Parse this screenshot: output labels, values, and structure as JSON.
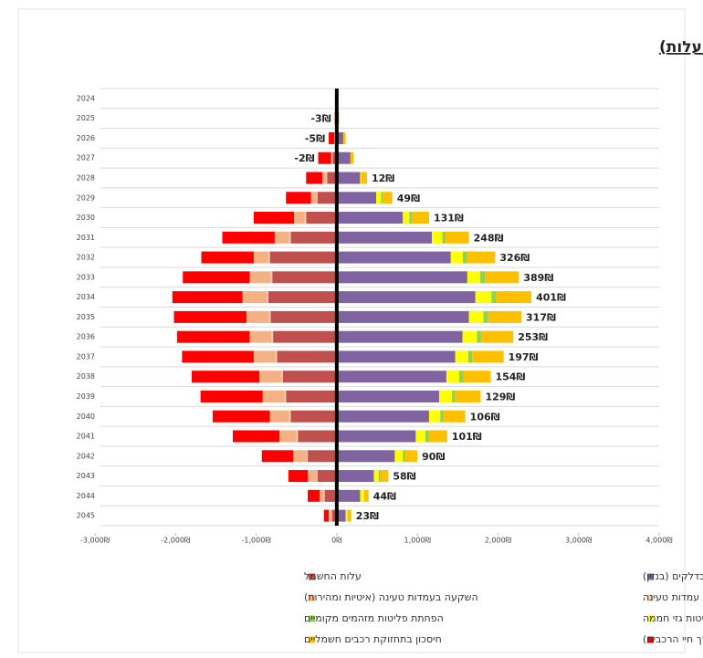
{
  "chart_data": {
    "type": "diverging-stacked-bar",
    "title": "תועלת נטו במלש\"ח (חיסכון בניכוי עלות)",
    "categories": [
      "2024",
      "2025",
      "2026",
      "2027",
      "2028",
      "2029",
      "2030",
      "2031",
      "2032",
      "2033",
      "2034",
      "2035",
      "2036",
      "2037",
      "2038",
      "2039",
      "2040",
      "2041",
      "2042",
      "2043",
      "2044",
      "2045"
    ],
    "series": [
      {
        "name": "חיסכון בדלקים (בנזין)",
        "color": "#8064a2",
        "values": [
          null,
          20,
          80,
          170,
          290,
          490,
          820,
          1180,
          1415,
          1620,
          1720,
          1640,
          1560,
          1470,
          1360,
          1270,
          1145,
          980,
          720,
          460,
          290,
          110
        ]
      },
      {
        "name": "עלות החשמל",
        "color": "#c0504d",
        "values": [
          null,
          -5,
          -20,
          -50,
          -120,
          -240,
          -380,
          -570,
          -830,
          -800,
          -850,
          -820,
          -790,
          -740,
          -670,
          -630,
          -570,
          -480,
          -360,
          -240,
          -150,
          -60
        ]
      },
      {
        "name": "עלות תחזוקת עמדות טעינה",
        "color": "#f8cbad",
        "values": [
          null,
          0,
          0,
          0,
          -10,
          -10,
          -20,
          -20,
          -20,
          -20,
          -20,
          -20,
          -20,
          -20,
          -20,
          -20,
          -20,
          -20,
          -10,
          -10,
          -10,
          -10
        ]
      },
      {
        "name": "השקעה בעמדות טעינה (איטיות ומהירות)",
        "color": "#f4b183",
        "values": [
          null,
          0,
          -10,
          -20,
          -50,
          -70,
          -130,
          -180,
          -180,
          -260,
          -300,
          -280,
          -270,
          -270,
          -270,
          -270,
          -240,
          -210,
          -170,
          -110,
          -50,
          -30
        ]
      },
      {
        "name": "הפחתת פליטות גזי חממה",
        "color": "#ffff00",
        "values": [
          null,
          0,
          0,
          0,
          10,
          60,
          80,
          130,
          150,
          160,
          200,
          180,
          180,
          160,
          160,
          160,
          140,
          120,
          100,
          60,
          50,
          20
        ]
      },
      {
        "name": "הפחתת פליטות מזהמים מקומיים",
        "color": "#92d050",
        "values": [
          null,
          0,
          0,
          0,
          5,
          20,
          30,
          40,
          50,
          60,
          60,
          60,
          50,
          50,
          50,
          40,
          40,
          40,
          30,
          20,
          10,
          5
        ]
      },
      {
        "name": "פער בעלות הרכבים (בפריסה לאורך חיי הרכבים)",
        "color": "#ff0000",
        "values": [
          null,
          -20,
          -70,
          -160,
          -200,
          -310,
          -500,
          -650,
          -650,
          -830,
          -870,
          -900,
          -900,
          -890,
          -840,
          -770,
          -710,
          -580,
          -390,
          -240,
          -150,
          -60
        ]
      },
      {
        "name": "חיסכון בתחזוקת רכבים חשמליים",
        "color": "#ffc000",
        "values": [
          null,
          10,
          30,
          40,
          70,
          120,
          215,
          290,
          350,
          420,
          435,
          410,
          400,
          390,
          340,
          315,
          270,
          230,
          150,
          100,
          45,
          45
        ]
      }
    ],
    "totals": {
      "values": [
        null,
        -3,
        -5,
        -2,
        12,
        49,
        131,
        248,
        326,
        389,
        401,
        317,
        253,
        197,
        154,
        129,
        106,
        101,
        90,
        58,
        44,
        23
      ],
      "value_labels": [
        null,
        "-3₪",
        "-5₪",
        "-2₪",
        "12₪",
        "49₪",
        "131₪",
        "248₪",
        "326₪",
        "389₪",
        "401₪",
        "317₪",
        "253₪",
        "197₪",
        "154₪",
        "129₪",
        "106₪",
        "101₪",
        "90₪",
        "58₪",
        "44₪",
        "23₪"
      ]
    },
    "xlim": [
      -3000,
      4000
    ],
    "xticks": [
      {
        "value": -3000,
        "label": "-3,000₪"
      },
      {
        "value": -2000,
        "label": "-2,000₪"
      },
      {
        "value": -1000,
        "label": "-1,000₪"
      },
      {
        "value": 0,
        "label": "0₪"
      },
      {
        "value": 1000,
        "label": "1,000₪"
      },
      {
        "value": 2000,
        "label": "2,000₪"
      },
      {
        "value": 3000,
        "label": "3,000₪"
      },
      {
        "value": 4000,
        "label": "4,000₪"
      }
    ],
    "grid": true
  }
}
